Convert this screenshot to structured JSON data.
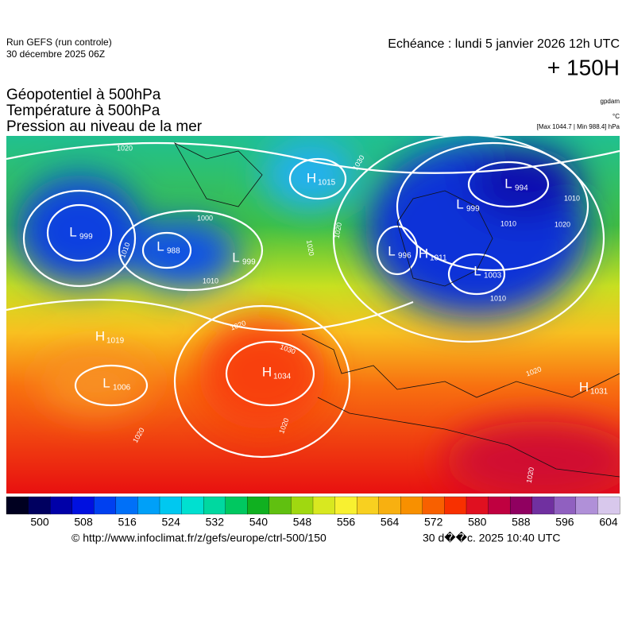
{
  "header": {
    "run": "Run GEFS (run controle)",
    "run_date": "30 décembre 2025 06Z",
    "valid": "Echéance : lundi 5 janvier 2026 12h UTC",
    "lead": "+ 150H",
    "fields": [
      "Géopotentiel à 500hPa",
      "Température à 500hPa",
      "Pression au niveau de la mer"
    ],
    "units": [
      "gpdam",
      "°C",
      "[Max 1044.7 | Min 988.4] hPa"
    ]
  },
  "centers": [
    {
      "letter": "L",
      "value": 999
    },
    {
      "letter": "L",
      "value": 988
    },
    {
      "letter": "L",
      "value": 999
    },
    {
      "letter": "H",
      "value": 1019
    },
    {
      "letter": "L",
      "value": 1006
    },
    {
      "letter": "H",
      "value": 1034
    },
    {
      "letter": "H",
      "value": 1015
    },
    {
      "letter": "L",
      "value": 996
    },
    {
      "letter": "H",
      "value": 1011
    },
    {
      "letter": "L",
      "value": 1003
    },
    {
      "letter": "L",
      "value": 999
    },
    {
      "letter": "L",
      "value": 994
    },
    {
      "letter": "H",
      "value": 1031
    }
  ],
  "contour_labels": [
    1020,
    1010,
    1000,
    1010,
    1010,
    1020,
    1030,
    1020,
    1010,
    1020,
    1030,
    1020,
    1020,
    1010,
    1020,
    1020,
    1020
  ],
  "colorbar": {
    "ticks": [
      500,
      508,
      516,
      524,
      532,
      540,
      548,
      556,
      564,
      572,
      580,
      588,
      596,
      604
    ],
    "colors": [
      "#000020",
      "#000060",
      "#0000a8",
      "#0010e0",
      "#0040f0",
      "#0070f8",
      "#00a0f8",
      "#00c8f0",
      "#00e0d0",
      "#00d8a0",
      "#00c860",
      "#10b020",
      "#60c010",
      "#a0d810",
      "#d8e820",
      "#f8f030",
      "#f8d020",
      "#f8b010",
      "#f89000",
      "#f86000",
      "#f83000",
      "#e01020",
      "#c00040",
      "#900060",
      "#7030a0",
      "#9060c0",
      "#b090d8",
      "#d8c8ec"
    ]
  },
  "footer": {
    "url": "© http://www.infoclimat.fr/z/gefs/europe/ctrl-500/150",
    "stamp": "30 d��c. 2025 10:40 UTC"
  }
}
